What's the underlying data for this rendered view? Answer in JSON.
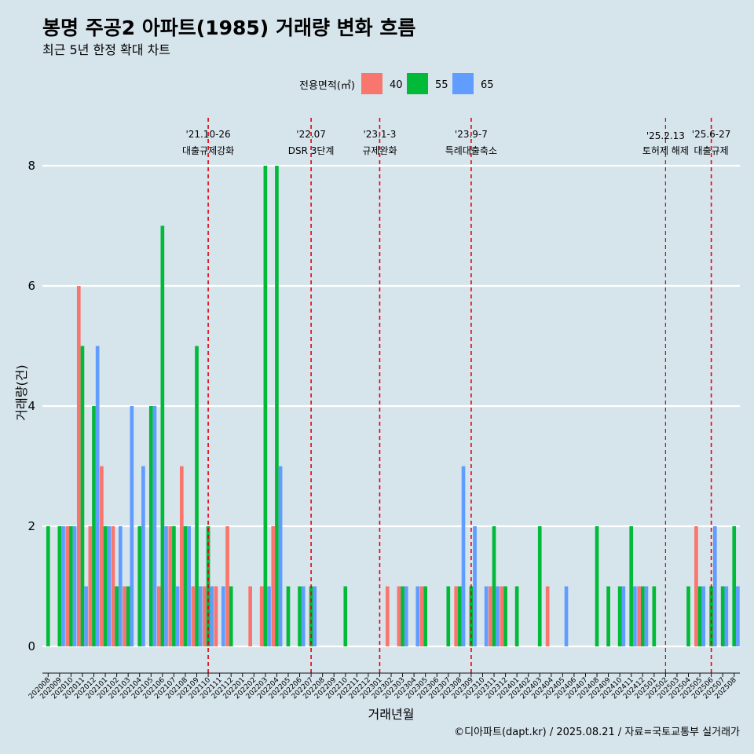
{
  "chart_data": {
    "type": "bar",
    "title": "봉명 주공2 아파트(1985) 거래량 변화 흐름",
    "subtitle": "최근 5년 한정 확대 차트",
    "xlabel": "거래년월",
    "ylabel": "거래량(건)",
    "ylim": [
      0,
      8
    ],
    "yticks": [
      0,
      2,
      4,
      6,
      8
    ],
    "grid": "horizontal",
    "legend": {
      "title": "전용면적(㎡)",
      "position": "top"
    },
    "caption": "©디아파트(dapt.kr) / 2025.08.21 / 자료=국토교통부 실거래가",
    "categories": [
      "202008",
      "202009",
      "202010",
      "202011",
      "202012",
      "202101",
      "202102",
      "202103",
      "202104",
      "202105",
      "202106",
      "202107",
      "202108",
      "202109",
      "202110",
      "202111",
      "202112",
      "202201",
      "202202",
      "202203",
      "202204",
      "202205",
      "202206",
      "202207",
      "202208",
      "202209",
      "202210",
      "202211",
      "202212",
      "202301",
      "202302",
      "202303",
      "202304",
      "202305",
      "202306",
      "202307",
      "202308",
      "202309",
      "202310",
      "202311",
      "202312",
      "202401",
      "202402",
      "202403",
      "202404",
      "202405",
      "202406",
      "202407",
      "202408",
      "202409",
      "202410",
      "202411",
      "202412",
      "202501",
      "202502",
      "202503",
      "202504",
      "202505",
      "202506",
      "202507",
      "202508"
    ],
    "series": [
      {
        "name": "40",
        "color": "#f8766d",
        "values": [
          0,
          0,
          2,
          6,
          2,
          3,
          2,
          1,
          0,
          0,
          1,
          2,
          3,
          1,
          1,
          1,
          2,
          0,
          1,
          1,
          2,
          0,
          0,
          0,
          0,
          0,
          0,
          0,
          0,
          0,
          1,
          1,
          0,
          1,
          0,
          0,
          1,
          0,
          0,
          1,
          1,
          0,
          0,
          0,
          1,
          0,
          0,
          0,
          0,
          0,
          0,
          0,
          1,
          0,
          0,
          0,
          0,
          2,
          0,
          0,
          0
        ]
      },
      {
        "name": "55",
        "color": "#00ba38",
        "values": [
          2,
          2,
          2,
          5,
          4,
          2,
          1,
          1,
          2,
          4,
          7,
          2,
          2,
          5,
          2,
          0,
          1,
          0,
          0,
          8,
          8,
          1,
          1,
          1,
          0,
          0,
          1,
          0,
          0,
          0,
          0,
          1,
          0,
          1,
          0,
          1,
          1,
          1,
          0,
          2,
          1,
          1,
          0,
          2,
          0,
          0,
          0,
          0,
          2,
          1,
          1,
          2,
          1,
          1,
          0,
          0,
          1,
          1,
          1,
          1,
          2
        ]
      },
      {
        "name": "65",
        "color": "#619cff",
        "values": [
          0,
          2,
          2,
          1,
          5,
          2,
          2,
          4,
          3,
          4,
          2,
          1,
          2,
          1,
          1,
          1,
          0,
          0,
          0,
          1,
          3,
          0,
          1,
          1,
          0,
          0,
          0,
          0,
          0,
          0,
          0,
          1,
          1,
          0,
          0,
          0,
          3,
          2,
          1,
          1,
          0,
          0,
          0,
          0,
          0,
          1,
          0,
          0,
          0,
          0,
          1,
          1,
          1,
          0,
          0,
          0,
          0,
          1,
          2,
          1,
          1
        ]
      }
    ],
    "events": [
      {
        "date": "'21.10-26",
        "label": "대출규제강화",
        "month": "202110"
      },
      {
        "date": "'22.07",
        "label": "DSR 3단계",
        "month": "202207"
      },
      {
        "date": "'23.1-3",
        "label": "규제완화",
        "month": "202301"
      },
      {
        "date": "'23.9-7",
        "label": "특례대출축소",
        "month": "202309"
      },
      {
        "date": "'25.2.13",
        "label": "토허제 해제",
        "month": "202502"
      },
      {
        "date": "'25.6-27",
        "label": "대출규제",
        "month": "202506"
      }
    ]
  }
}
